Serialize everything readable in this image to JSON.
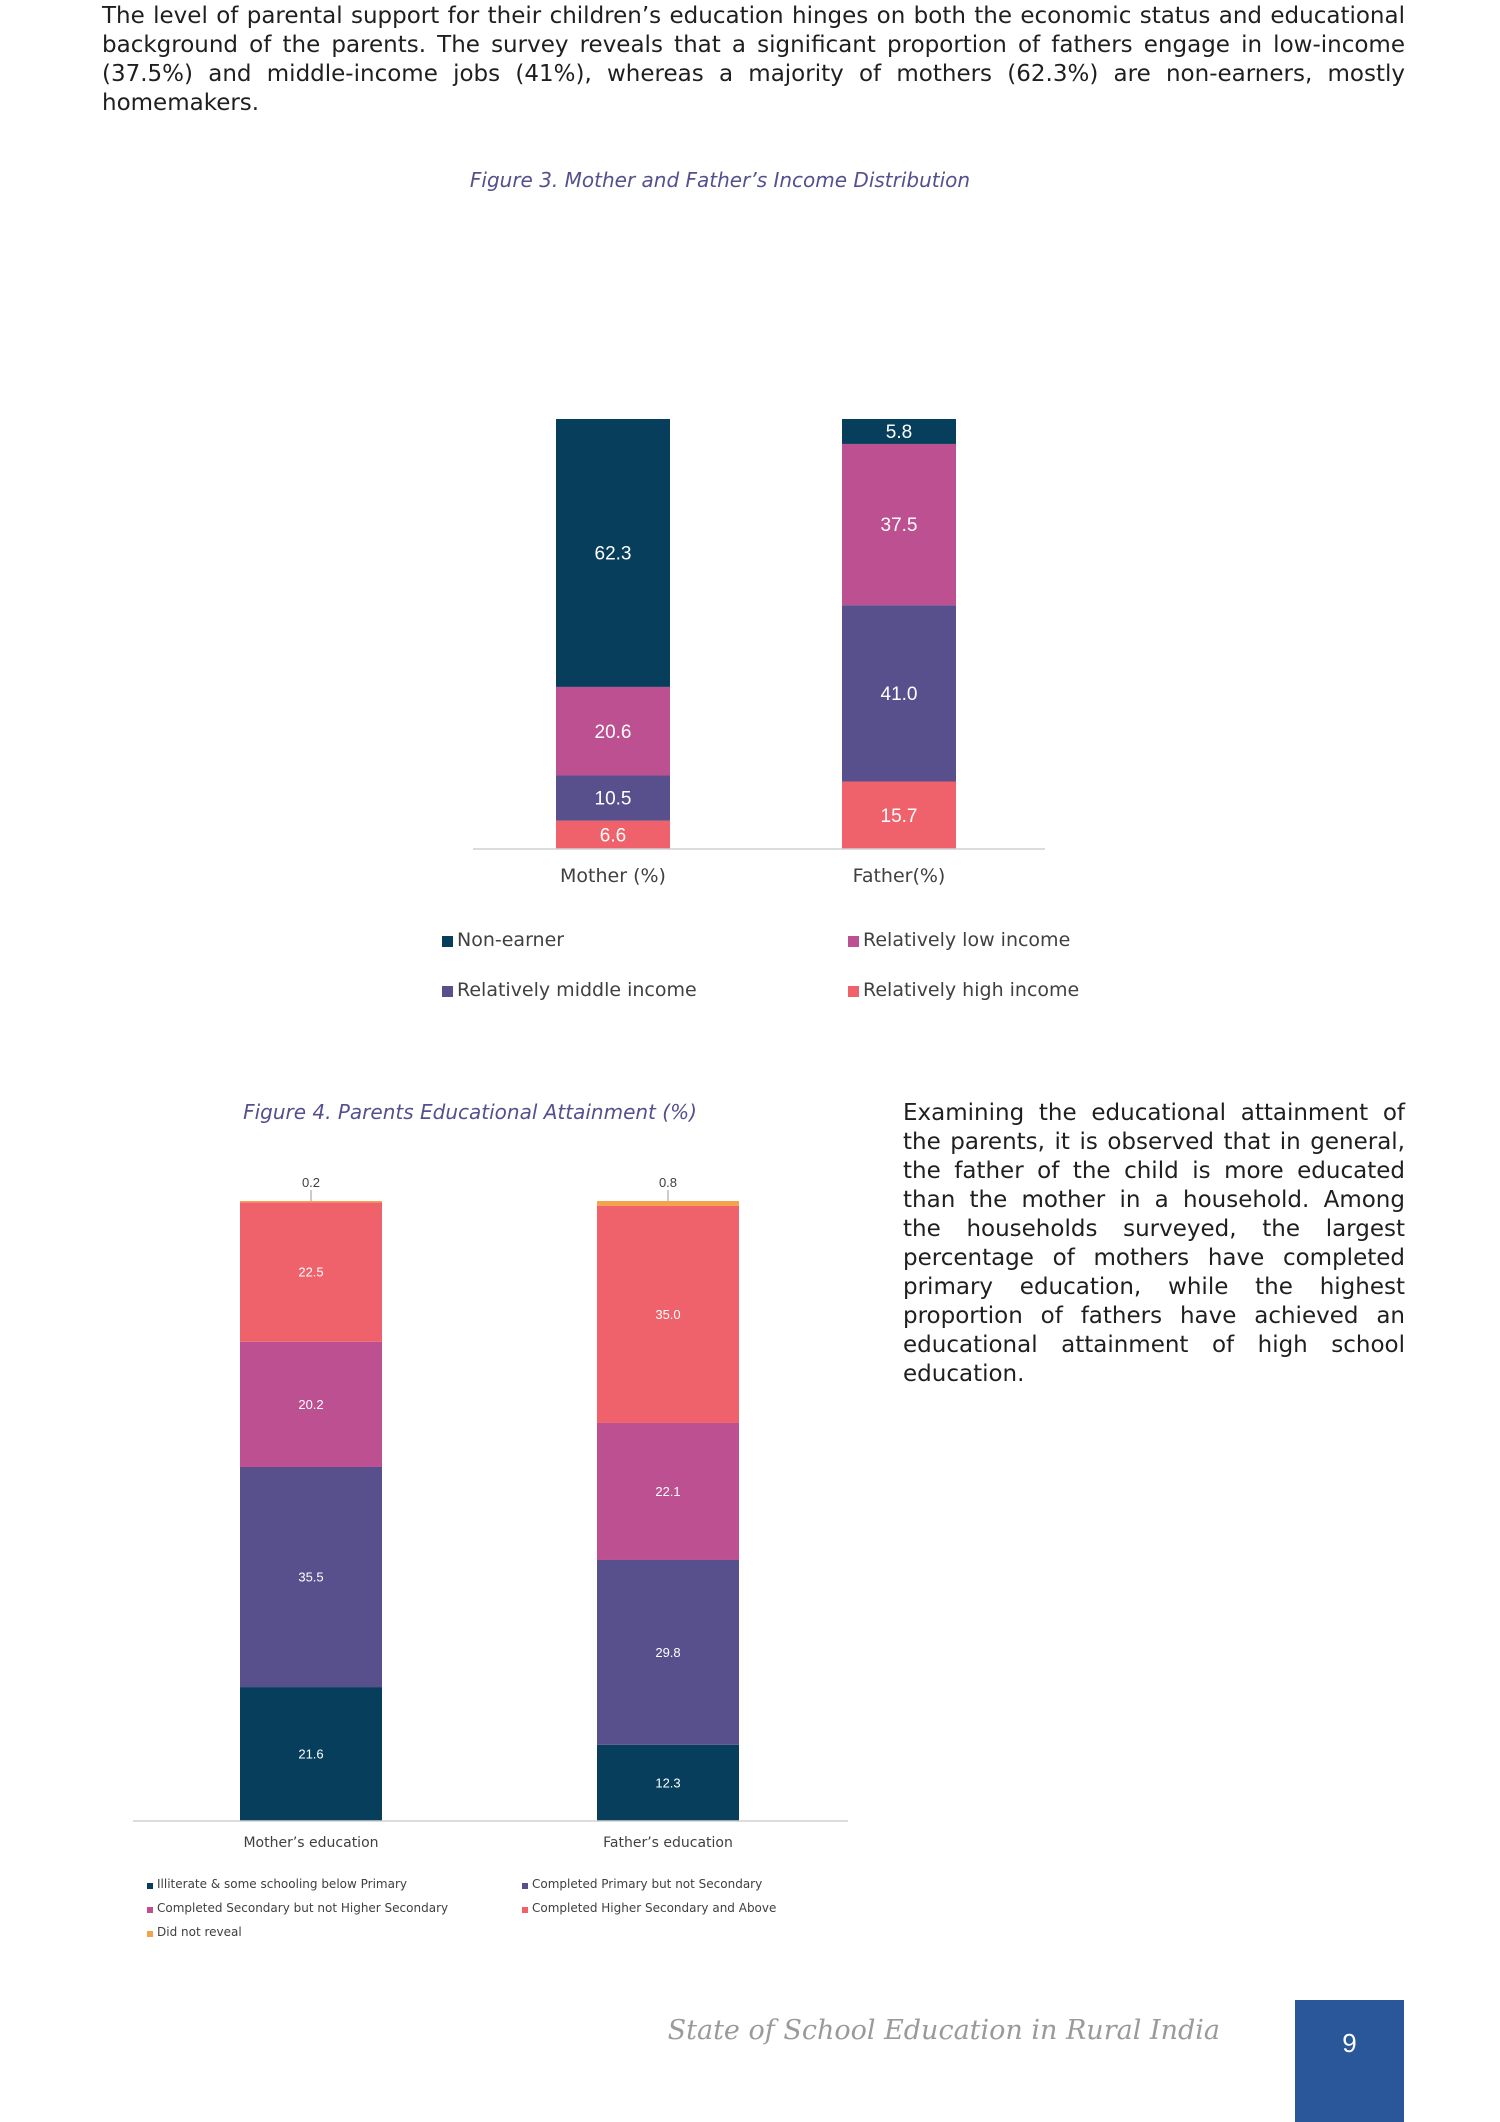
{
  "body": {
    "paragraph1": "The level of parental support for their children’s education hinges on both the economic status and educational background of the parents. The survey reveals that a significant proportion of fathers engage in low-income (37.5%) and middle-income jobs (41%), whereas a majority of mothers (62.3%) are non-earners, mostly homemakers.",
    "paragraph2": "Examining the educational attainment of the parents, it is observed that in general, the father of the child is more educated than the mother in a household. Among the households surveyed, the largest percentage of mothers have completed primary education, while the highest proportion of fathers have achieved an educational attainment of high school education."
  },
  "figures": {
    "fig3_caption": "Figure 3. Mother and Father’s Income Distribution",
    "fig4_caption": "Figure 4. Parents Educational Attainment (%)"
  },
  "footer": {
    "title": "State of School Education in Rural India",
    "page_number": "9"
  },
  "chart_data": [
    {
      "type": "bar",
      "stacked": true,
      "title": "Figure 3. Mother and Father’s Income Distribution",
      "categories": [
        "Mother (%)",
        "Father(%)"
      ],
      "series": [
        {
          "name": "Relatively high income",
          "values": [
            "6.6",
            "15.7"
          ],
          "color": "#f0626b"
        },
        {
          "name": "Relatively middle income",
          "values": [
            "10.5",
            "41.0"
          ],
          "color": "#58508d"
        },
        {
          "name": "Relatively low income",
          "values": [
            "20.6",
            "37.5"
          ],
          "color": "#bc5090"
        },
        {
          "name": "Non-earner",
          "values": [
            "62.3",
            "5.8"
          ],
          "color": "#073e5b"
        }
      ],
      "legend_order": [
        "Non-earner",
        "Relatively low income",
        "Relatively middle income",
        "Relatively high income"
      ],
      "legend_position": "bottom",
      "ylim": [
        0,
        100
      ],
      "grid": false
    },
    {
      "type": "bar",
      "stacked": true,
      "title": "Figure 4. Parents Educational Attainment (%)",
      "categories": [
        "Mother’s education",
        "Father’s education"
      ],
      "series": [
        {
          "name": "Illiterate & some schooling below Primary",
          "values": [
            "21.6",
            "12.3"
          ],
          "color": "#073e5b"
        },
        {
          "name": "Completed Primary but not Secondary",
          "values": [
            "35.5",
            "29.8"
          ],
          "color": "#58508d"
        },
        {
          "name": "Completed Secondary but not Higher Secondary",
          "values": [
            "20.2",
            "22.1"
          ],
          "color": "#bc5090"
        },
        {
          "name": "Completed Higher Secondary and Above",
          "values": [
            "22.5",
            "35.0"
          ],
          "color": "#f0626b"
        },
        {
          "name": "Did not reveal",
          "values": [
            "0.2",
            "0.8"
          ],
          "color": "#f4a24c"
        }
      ],
      "legend_order": [
        "Illiterate & some schooling below Primary",
        "Completed Primary but not Secondary",
        "Completed Secondary but not Higher Secondary",
        "Completed Higher Secondary and Above",
        "Did not reveal"
      ],
      "legend_position": "bottom",
      "ylim": [
        0,
        100
      ],
      "grid": false
    }
  ]
}
